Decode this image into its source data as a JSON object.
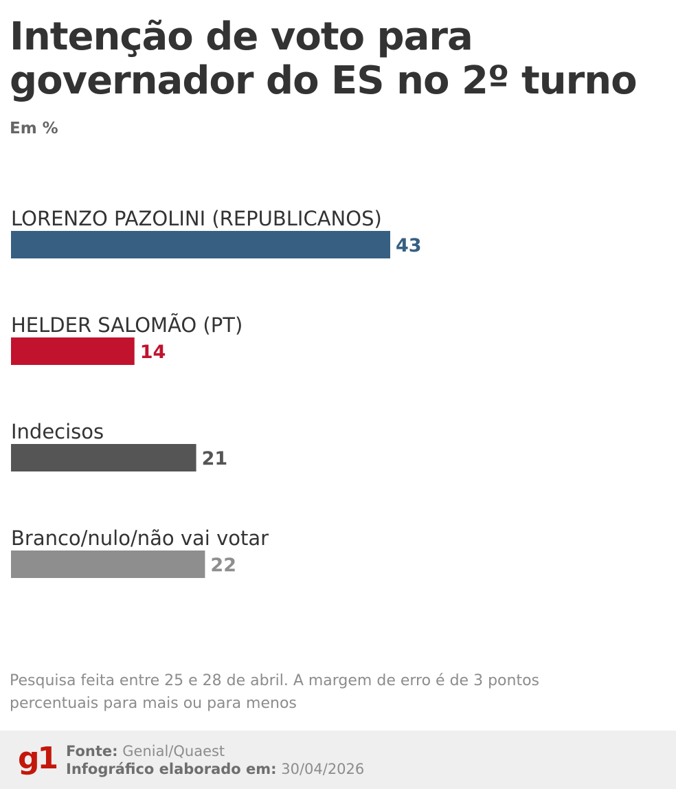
{
  "header": {
    "title": "Intenção de voto para governador do ES no 2º turno",
    "subtitle": "Em %"
  },
  "chart_data": {
    "type": "bar",
    "orientation": "horizontal",
    "title": "Intenção de voto para governador do ES no 2º turno",
    "unit": "Em %",
    "categories": [
      "LORENZO PAZOLINI (REPUBLICANOS)",
      "HELDER SALOMÃO (PT)",
      "Indecisos",
      "Branco/nulo/não vai votar"
    ],
    "values": [
      43,
      14,
      21,
      22
    ],
    "colors": [
      "#365f82",
      "#c1132e",
      "#555555",
      "#8e8e8e"
    ],
    "xlim": [
      0,
      43
    ],
    "grid": false,
    "legend": "none"
  },
  "note": "Pesquisa feita entre 25 e 28 de abril. A margem de erro é de 3 pontos percentuais para mais ou para menos",
  "footer": {
    "logo_text": "g1",
    "source_label": "Fonte:",
    "source_value": "Genial/Quaest",
    "made_label": "Infográfico elaborado em:",
    "made_value": "30/04/2026"
  }
}
